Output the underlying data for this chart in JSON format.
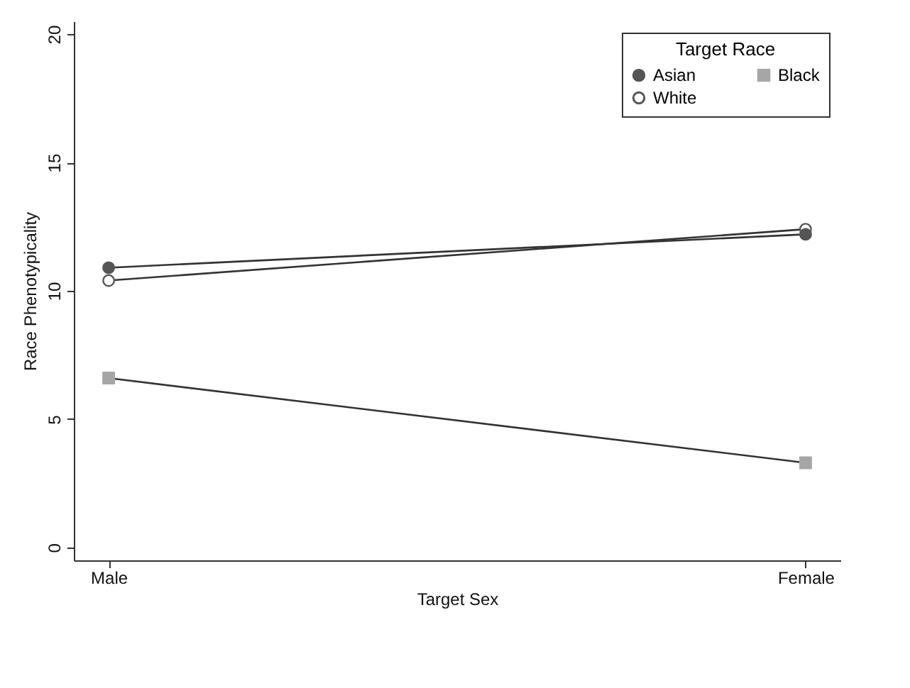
{
  "chart_data": {
    "type": "line",
    "xlabel": "Target Sex",
    "ylabel": "Race Phenotypicality",
    "legend_title": "Target Race",
    "categories": [
      "Male",
      "Female"
    ],
    "series": [
      {
        "name": "Asian",
        "color": "#555555",
        "marker": "circle",
        "values": [
          10.9,
          12.2
        ]
      },
      {
        "name": "Black",
        "color": "#a6a6a6",
        "marker": "square",
        "values": [
          6.6,
          3.3
        ]
      },
      {
        "name": "White",
        "color": "#ffffff",
        "marker": "circle",
        "values": [
          10.4,
          12.4
        ]
      }
    ],
    "ylim": [
      -0.5,
      20.5
    ],
    "yticks": [
      0,
      5,
      10,
      15,
      20
    ],
    "grid": false,
    "legend": "top right",
    "line_style": "solid"
  }
}
